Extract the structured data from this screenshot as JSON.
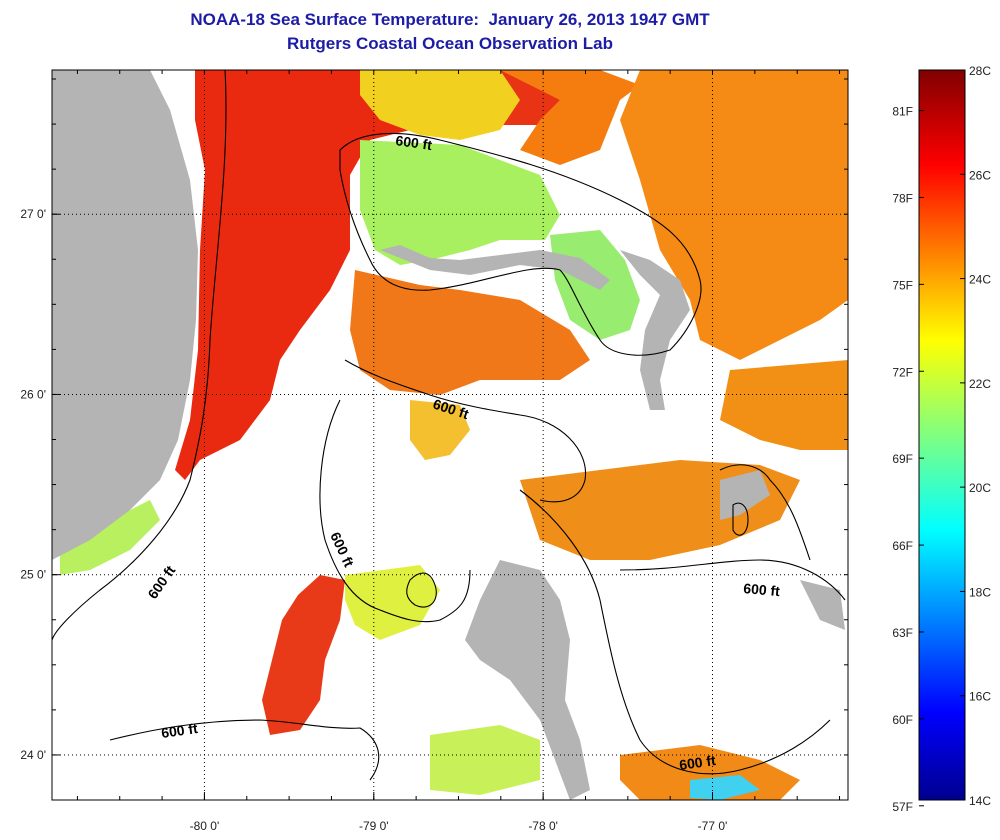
{
  "title": {
    "line1": "NOAA-18 Sea Surface Temperature:  January 26, 2013 1947 GMT",
    "line2": "Rutgers Coastal Ocean Observation Lab"
  },
  "map": {
    "lon_range": [
      -80.9,
      -76.2
    ],
    "lat_range": [
      23.75,
      27.8
    ],
    "lon_ticks": [
      {
        "value": -80,
        "label": "-80 0'"
      },
      {
        "value": -79,
        "label": "-79 0'"
      },
      {
        "value": -78,
        "label": "-78 0'"
      },
      {
        "value": -77,
        "label": "-77 0'"
      }
    ],
    "lat_ticks": [
      {
        "value": 27,
        "label": "27 0'"
      },
      {
        "value": 26,
        "label": "26 0'"
      },
      {
        "value": 25,
        "label": "25 0'"
      },
      {
        "value": 24,
        "label": "24 0'"
      }
    ],
    "grid": "dotted",
    "contour_labels": [
      "600 ft",
      "600 ft",
      "600 ft",
      "600 ft",
      "600 ft",
      "600 ft"
    ],
    "colors": {
      "land": "#b4b4b4",
      "no_data": "#ffffff"
    }
  },
  "colorbar": {
    "min_c": 14,
    "max_c": 28,
    "celsius_labels": [
      "28C",
      "26C",
      "24C",
      "22C",
      "20C",
      "18C",
      "16C",
      "14C"
    ],
    "fahrenheit_labels": [
      "81F",
      "78F",
      "75F",
      "72F",
      "69F",
      "66F",
      "63F",
      "60F",
      "57F"
    ],
    "colormap": "jet"
  }
}
